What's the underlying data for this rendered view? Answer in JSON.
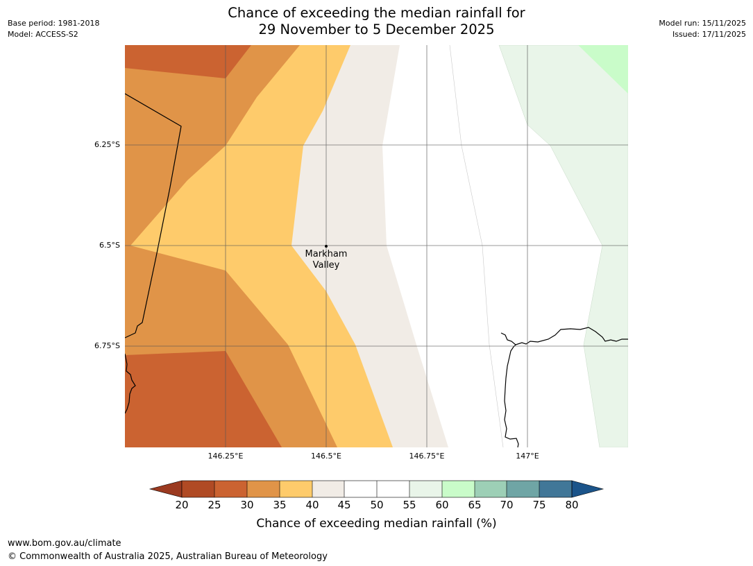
{
  "header": {
    "title_line1": "Chance of exceeding the median rainfall for",
    "title_line2": "29 November to 5 December 2025",
    "base_period": "Base period: 1981-2018",
    "model": "Model: ACCESS-S2",
    "model_run": "Model run: 15/11/2025",
    "issued": "Issued: 17/11/2025"
  },
  "map": {
    "lat_labels": [
      "6.25°S",
      "6.5°S",
      "6.75°S"
    ],
    "lon_labels": [
      "146.25°E",
      "146.5°E",
      "146.75°E",
      "147°E"
    ],
    "place": {
      "line1": "Markham",
      "line2": "Valley"
    }
  },
  "colorbar": {
    "ticks": [
      "20",
      "25",
      "30",
      "35",
      "40",
      "45",
      "50",
      "55",
      "60",
      "65",
      "70",
      "75",
      "80"
    ],
    "label": "Chance of exceeding median rainfall (%)",
    "colors": {
      "under": "#9b3a20",
      "bins": [
        "#b04a24",
        "#cb6331",
        "#e09448",
        "#fecb6b",
        "#f1ece6",
        "#ffffff",
        "#ffffff",
        "#e9f5e9",
        "#c9fcc9",
        "#9dcfb6",
        "#6fa5a5",
        "#417798"
      ],
      "over": "#1b548a"
    }
  },
  "footer": {
    "url": "www.bom.gov.au/climate",
    "copyright": "© Commonwealth of Australia 2025, Australian Bureau of Meteorology"
  }
}
